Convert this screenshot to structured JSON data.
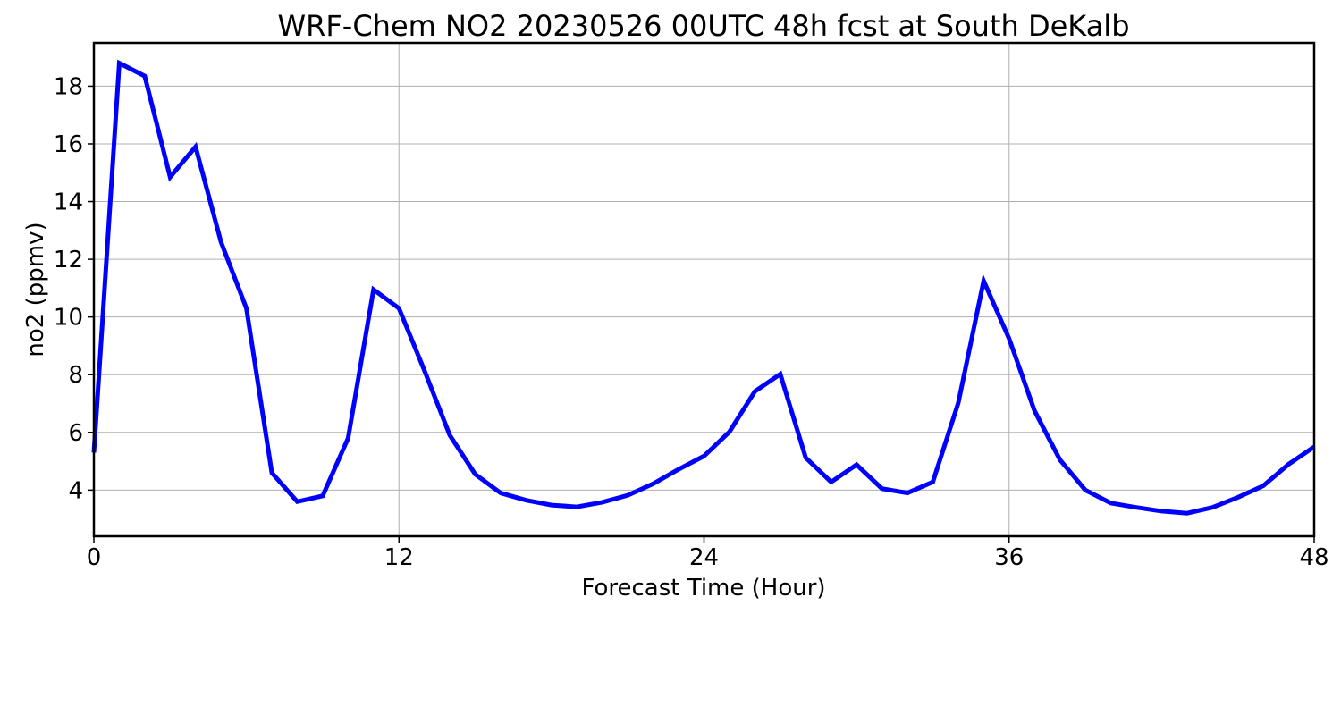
{
  "chart_data": {
    "type": "line",
    "title": "WRF-Chem NO2  20230526 00UTC 48h fcst at South DeKalb",
    "xlabel": "Forecast Time (Hour)",
    "ylabel": "no2  (ppmv)",
    "xlim": [
      0,
      48
    ],
    "ylim": [
      2.4,
      19.5
    ],
    "xticks": [
      0,
      12,
      24,
      36,
      48
    ],
    "yticks": [
      4,
      6,
      8,
      10,
      12,
      14,
      16,
      18
    ],
    "grid": true,
    "series": [
      {
        "color": "#0000ff",
        "x": [
          0,
          1,
          2,
          3,
          4,
          5,
          6,
          7,
          8,
          9,
          10,
          11,
          12,
          13,
          14,
          15,
          16,
          17,
          18,
          19,
          20,
          21,
          22,
          23,
          24,
          25,
          26,
          27,
          28,
          29,
          30,
          31,
          32,
          33,
          34,
          35,
          36,
          37,
          38,
          39,
          40,
          41,
          42,
          43,
          44,
          45,
          46,
          47,
          48
        ],
        "values": [
          5.3,
          18.8,
          18.35,
          14.85,
          15.9,
          12.6,
          10.3,
          4.6,
          3.6,
          3.8,
          5.8,
          10.95,
          10.3,
          8.15,
          5.9,
          4.55,
          3.9,
          3.65,
          3.48,
          3.42,
          3.58,
          3.82,
          4.22,
          4.72,
          5.18,
          6.02,
          7.42,
          8.02,
          5.12,
          4.28,
          4.88,
          4.05,
          3.9,
          4.28,
          7.02,
          11.25,
          9.25,
          6.75,
          5.05,
          4.0,
          3.55,
          3.4,
          3.27,
          3.2,
          3.4,
          3.75,
          4.15,
          4.9,
          5.5
        ]
      }
    ]
  }
}
